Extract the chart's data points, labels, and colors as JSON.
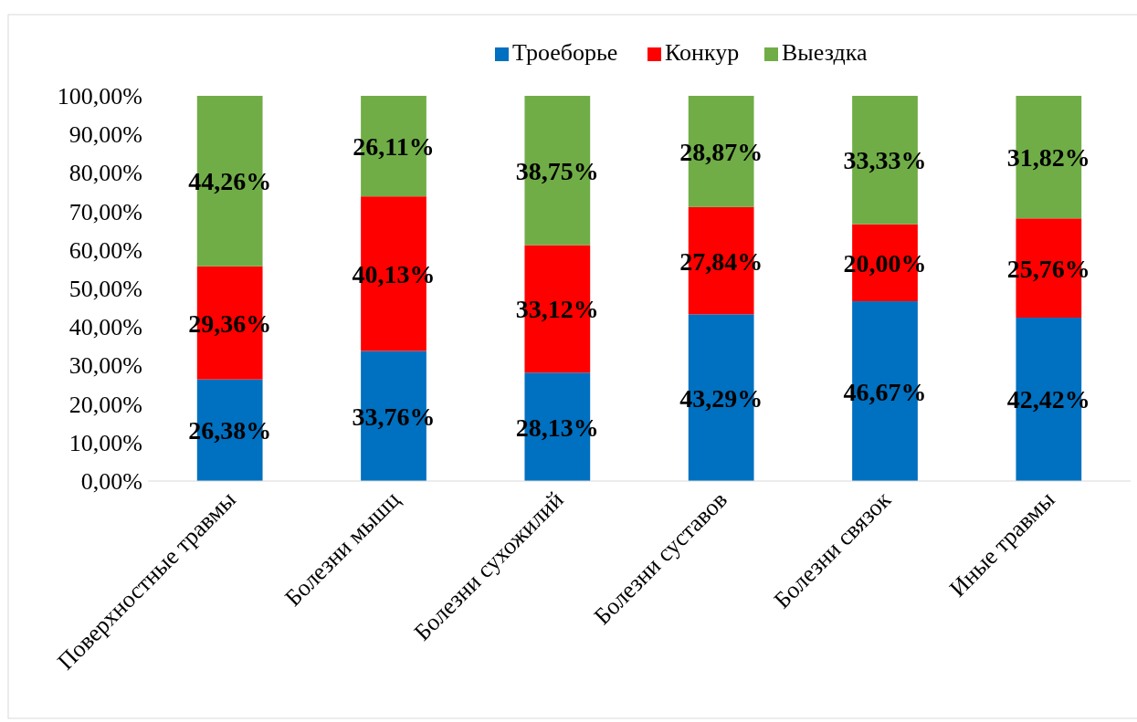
{
  "chart_data": {
    "type": "bar",
    "stacked": true,
    "categories": [
      "Поверхностные травмы",
      "Болезни мышц",
      "Болезни сухожилий",
      "Болезни суставов",
      "Болезни связок",
      "Иные травмы"
    ],
    "series": [
      {
        "name": "Троеборье",
        "color": "#0070c0",
        "values": [
          26.38,
          33.76,
          28.13,
          43.29,
          46.67,
          42.42
        ],
        "value_labels": [
          "26,38%",
          "33,76%",
          "28,13%",
          "43,29%",
          "46,67%",
          "42,42%"
        ]
      },
      {
        "name": "Конкур",
        "color": "#ff0000",
        "values": [
          29.36,
          40.13,
          33.12,
          27.84,
          20.0,
          25.76
        ],
        "value_labels": [
          "29,36%",
          "40,13%",
          "33,12%",
          "27,84%",
          "20,00%",
          "25,76%"
        ]
      },
      {
        "name": "Выездка",
        "color": "#70ad47",
        "values": [
          44.26,
          26.11,
          38.75,
          28.87,
          33.33,
          31.82
        ],
        "value_labels": [
          "44,26%",
          "26,11%",
          "38,75%",
          "28,87%",
          "33,33%",
          "31,82%"
        ]
      }
    ],
    "ylim": [
      0,
      100
    ],
    "yticks": [
      {
        "value": 0,
        "label": "0,00%"
      },
      {
        "value": 10,
        "label": "10,00%"
      },
      {
        "value": 20,
        "label": "20,00%"
      },
      {
        "value": 30,
        "label": "30,00%"
      },
      {
        "value": 40,
        "label": "40,00%"
      },
      {
        "value": 50,
        "label": "50,00%"
      },
      {
        "value": 60,
        "label": "60,00%"
      },
      {
        "value": 70,
        "label": "70,00%"
      },
      {
        "value": 80,
        "label": "80,00%"
      },
      {
        "value": 90,
        "label": "90,00%"
      },
      {
        "value": 100,
        "label": "100,00%"
      }
    ],
    "grid": false,
    "legend": "top"
  }
}
